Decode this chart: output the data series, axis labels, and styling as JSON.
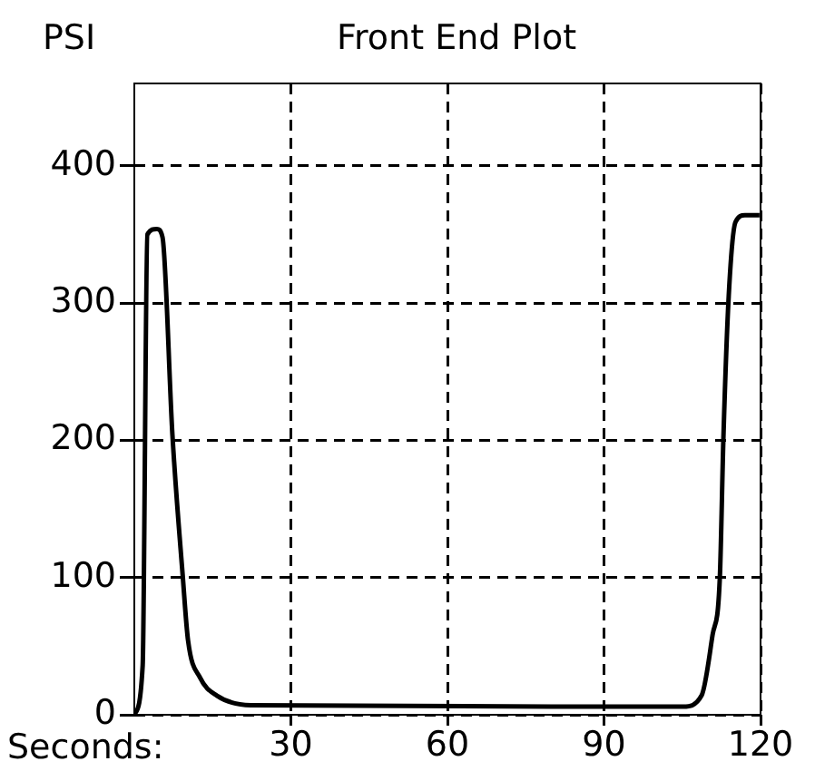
{
  "chart_data": {
    "type": "line",
    "title": "Front End Plot",
    "xlabel": "Seconds:",
    "ylabel": "PSI",
    "x": [
      0,
      1.6,
      2.5,
      4.3,
      5.4,
      7.3,
      9.3,
      10.3,
      12.6,
      15.8,
      22.3,
      105.2,
      108.7,
      110.8,
      112.2,
      112.9,
      113.9,
      115.2,
      117,
      119.8
    ],
    "values": [
      0,
      36,
      350,
      354,
      348,
      204,
      100,
      54,
      27,
      14,
      7,
      6,
      14,
      58,
      100,
      204,
      305,
      359,
      364,
      364
    ],
    "color": "#000000",
    "xlim": [
      0,
      120
    ],
    "ylim": [
      0,
      460
    ],
    "xticks": [
      30,
      60,
      90,
      120
    ],
    "yticks": [
      0,
      100,
      200,
      300,
      400
    ],
    "grid": true,
    "marker": "none"
  }
}
